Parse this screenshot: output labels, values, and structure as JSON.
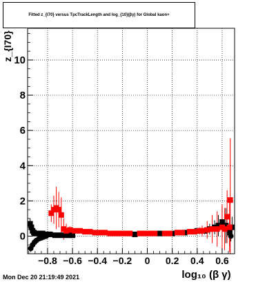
{
  "title": "Fitted z_{I70} versus TpcTrackLength and log_{10}(βγ) for Global kaon+",
  "footer": "Mon Dec 20 21:19:49 2021",
  "chart_data": {
    "type": "scatter",
    "title": "Fitted z_{I70} versus TpcTrackLength and log_{10}(βγ) for Global kaon+",
    "xlabel": "log₁₀ (β γ)",
    "ylabel": "z_{I70}",
    "xlim": [
      -0.96,
      0.7
    ],
    "ylim": [
      -1.0,
      11.8
    ],
    "xticks": [
      -0.8,
      -0.6,
      -0.4,
      -0.2,
      0,
      0.2,
      0.4,
      0.6
    ],
    "yticks": [
      0,
      2,
      4,
      6,
      8,
      10
    ],
    "xtick_labels": [
      "−0.8",
      "−0.6",
      "−0.4",
      "−0.2",
      "0",
      "0.2",
      "0.4",
      "0.6"
    ],
    "ytick_labels": [
      "0",
      "2",
      "4",
      "6",
      "8",
      "10"
    ],
    "grid": true,
    "colors": {
      "black_series": "#000000",
      "red_series": "#ff0000"
    },
    "series": [
      {
        "marker": "square",
        "color": "#000000",
        "points": [
          {
            "x": -0.94,
            "y": 0.7,
            "err": 0.3
          },
          {
            "x": -0.93,
            "y": 0.5,
            "err": 0.2
          },
          {
            "x": -0.92,
            "y": 0.3,
            "err": 0.2
          },
          {
            "x": -0.91,
            "y": 0.2,
            "err": 0.1
          },
          {
            "x": -0.9,
            "y": 0.15,
            "err": 0.1
          },
          {
            "x": -0.88,
            "y": 0.15,
            "err": 0.1
          },
          {
            "x": -0.86,
            "y": 0.15,
            "err": 0.1
          },
          {
            "x": -0.84,
            "y": 0.15,
            "err": 0.1
          },
          {
            "x": -0.82,
            "y": 0.1,
            "err": 0.1
          },
          {
            "x": -0.8,
            "y": 0.1,
            "err": 0.1
          },
          {
            "x": -0.78,
            "y": 0.1,
            "err": 0.1
          },
          {
            "x": -0.74,
            "y": 0.05,
            "err": 0.05
          },
          {
            "x": -0.7,
            "y": 0.05,
            "err": 0.05
          },
          {
            "x": -0.66,
            "y": 0.05,
            "err": 0.05
          },
          {
            "x": -0.62,
            "y": 0.05,
            "err": 0.05
          },
          {
            "x": -0.6,
            "y": 0.05,
            "err": 0.05
          },
          {
            "x": -0.1,
            "y": 0.1,
            "err": 0.05
          },
          {
            "x": 0.1,
            "y": 0.15,
            "err": 0.05
          },
          {
            "x": 0.2,
            "y": 0.15,
            "err": 0.05
          },
          {
            "x": 0.3,
            "y": 0.2,
            "err": 0.05
          },
          {
            "x": 0.4,
            "y": 0.3,
            "err": 0.1
          },
          {
            "x": 0.46,
            "y": 0.3,
            "err": 0.2
          },
          {
            "x": 0.5,
            "y": 0.4,
            "err": 0.3
          },
          {
            "x": 0.54,
            "y": 0.5,
            "err": 0.4
          },
          {
            "x": 0.57,
            "y": 0.6,
            "err": 0.6
          },
          {
            "x": 0.6,
            "y": 0.8,
            "err": 0.9
          },
          {
            "x": 0.63,
            "y": 0.6,
            "err": 1.0
          },
          {
            "x": 0.66,
            "y": 0.2,
            "err": 0.8
          },
          {
            "x": 0.68,
            "y": 0.5,
            "err": 0.6
          }
        ]
      },
      {
        "marker": "circle",
        "color": "#000000",
        "points": [
          {
            "x": -0.935,
            "y": -0.7,
            "err": 0.2
          },
          {
            "x": -0.92,
            "y": -0.5,
            "err": 0.15
          },
          {
            "x": -0.905,
            "y": -0.35,
            "err": 0.1
          },
          {
            "x": -0.89,
            "y": -0.25,
            "err": 0.1
          },
          {
            "x": -0.87,
            "y": -0.15,
            "err": 0.1
          },
          {
            "x": -0.85,
            "y": -0.1,
            "err": 0.05
          },
          {
            "x": -0.83,
            "y": -0.05,
            "err": 0.05
          },
          {
            "x": -0.81,
            "y": 0.0,
            "err": 0.05
          },
          {
            "x": 0.67,
            "y": 0.0,
            "err": 0.3
          }
        ]
      },
      {
        "marker": "square",
        "color": "#ff0000",
        "points": [
          {
            "x": -0.77,
            "y": 1.3,
            "err": 0.5
          },
          {
            "x": -0.75,
            "y": 1.5,
            "err": 0.8
          },
          {
            "x": -0.73,
            "y": 1.6,
            "err": 1.2
          },
          {
            "x": -0.71,
            "y": 1.5,
            "err": 1.0
          },
          {
            "x": -0.69,
            "y": 1.2,
            "err": 1.0
          },
          {
            "x": -0.67,
            "y": 0.4,
            "err": 0.6
          },
          {
            "x": -0.65,
            "y": 0.3,
            "err": 0.4
          },
          {
            "x": -0.62,
            "y": 0.35,
            "err": 0.2
          },
          {
            "x": -0.58,
            "y": 0.3,
            "err": 0.1
          },
          {
            "x": -0.54,
            "y": 0.3,
            "err": 0.1
          },
          {
            "x": -0.5,
            "y": 0.25,
            "err": 0.1
          },
          {
            "x": -0.46,
            "y": 0.25,
            "err": 0.05
          },
          {
            "x": -0.42,
            "y": 0.2,
            "err": 0.05
          },
          {
            "x": -0.38,
            "y": 0.2,
            "err": 0.05
          },
          {
            "x": -0.34,
            "y": 0.2,
            "err": 0.05
          },
          {
            "x": -0.3,
            "y": 0.15,
            "err": 0.05
          },
          {
            "x": -0.26,
            "y": 0.15,
            "err": 0.05
          },
          {
            "x": -0.22,
            "y": 0.15,
            "err": 0.05
          },
          {
            "x": -0.18,
            "y": 0.15,
            "err": 0.05
          },
          {
            "x": -0.14,
            "y": 0.15,
            "err": 0.05
          },
          {
            "x": -0.06,
            "y": 0.15,
            "err": 0.05
          },
          {
            "x": -0.02,
            "y": 0.15,
            "err": 0.05
          },
          {
            "x": 0.02,
            "y": 0.15,
            "err": 0.05
          },
          {
            "x": 0.06,
            "y": 0.15,
            "err": 0.05
          },
          {
            "x": 0.14,
            "y": 0.15,
            "err": 0.05
          },
          {
            "x": 0.18,
            "y": 0.15,
            "err": 0.05
          },
          {
            "x": 0.24,
            "y": 0.2,
            "err": 0.05
          },
          {
            "x": 0.28,
            "y": 0.2,
            "err": 0.05
          },
          {
            "x": 0.34,
            "y": 0.25,
            "err": 0.1
          },
          {
            "x": 0.38,
            "y": 0.25,
            "err": 0.1
          },
          {
            "x": 0.42,
            "y": 0.3,
            "err": 0.2
          },
          {
            "x": 0.44,
            "y": 0.3,
            "err": 0.3
          },
          {
            "x": 0.48,
            "y": 0.35,
            "err": 0.5
          },
          {
            "x": 0.52,
            "y": 0.4,
            "err": 0.8
          },
          {
            "x": 0.56,
            "y": 0.4,
            "err": 1.0
          },
          {
            "x": 0.6,
            "y": 0.5,
            "err": 1.3
          },
          {
            "x": 0.62,
            "y": 0.4,
            "err": 1.2
          },
          {
            "x": 0.64,
            "y": 1.1,
            "err": 1.5
          },
          {
            "x": 0.66,
            "y": 0.5,
            "err": 1.4
          },
          {
            "x": 0.665,
            "y": 2.05,
            "err": 3.5
          }
        ]
      }
    ]
  }
}
